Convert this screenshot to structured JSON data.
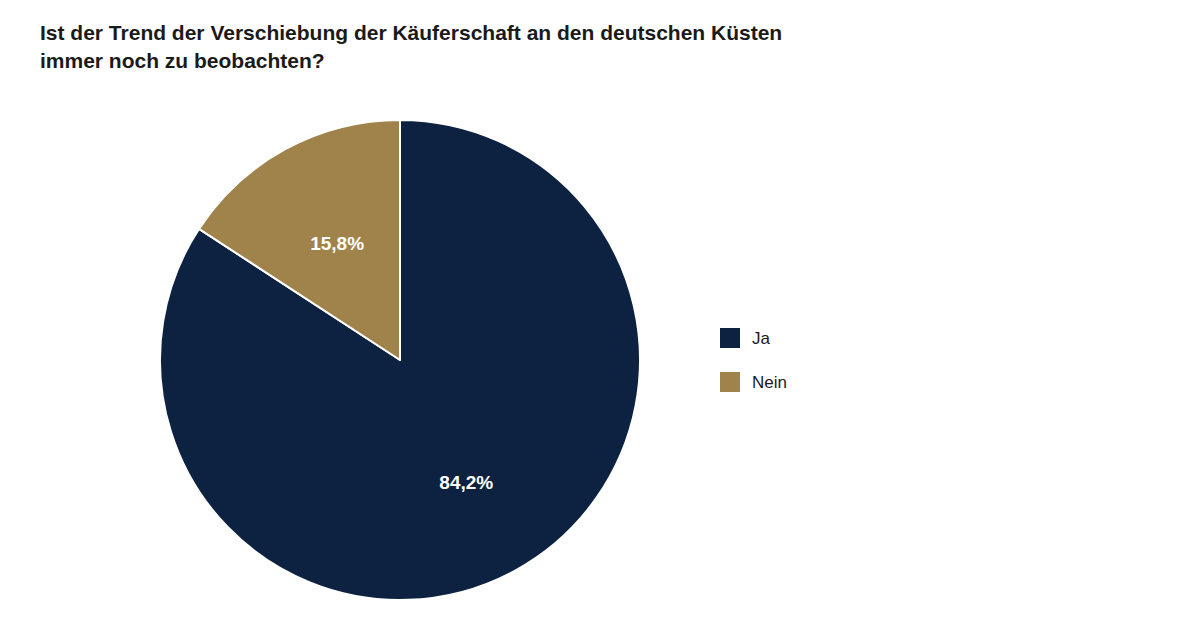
{
  "chart_data": {
    "type": "pie",
    "title": "Ist der Trend der Verschiebung der Käuferschaft an den deutschen Küsten",
    "subtitle": "immer noch zu beobachten?",
    "categories": [
      "Ja",
      "Nein"
    ],
    "values": [
      84.2,
      15.8
    ],
    "value_labels": [
      "84,2%",
      "15,8%"
    ],
    "colors": [
      "#0d2240",
      "#a0834a"
    ],
    "data_labels": true,
    "legend": "right"
  }
}
